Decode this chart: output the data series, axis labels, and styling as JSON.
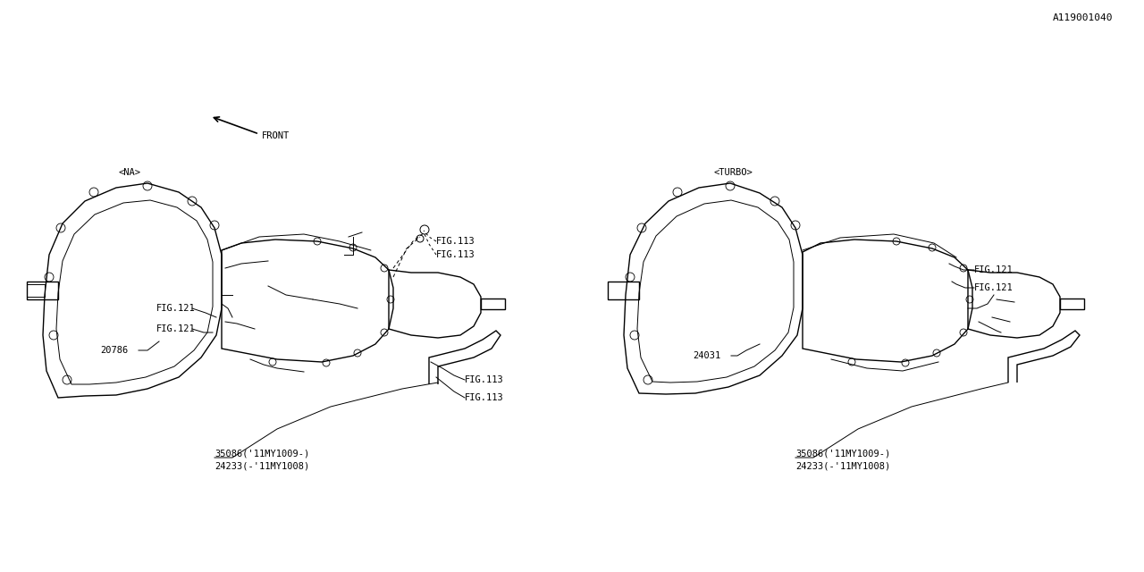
{
  "bg_color": "#ffffff",
  "line_color": "#000000",
  "fig_width": 12.8,
  "fig_height": 6.4,
  "title": "",
  "diagram_id": "A119001040",
  "labels": {
    "na_label": "<NA>",
    "turbo_label": "<TURBO>",
    "front_label": "FRONT",
    "part_20786": "20786",
    "part_24031": "24031",
    "part_24233_1": "24233(-'11MY1008)",
    "part_35086_1": "35086('11MY1009-)",
    "part_24233_2": "24233(-'11MY1008)",
    "part_35086_2": "35086('11MY1009-)",
    "fig121_1": "FIG.121",
    "fig121_2": "FIG.121",
    "fig121_3": "FIG.121",
    "fig121_4": "FIG.121",
    "fig113_1": "FIG.113",
    "fig113_2": "FIG.113",
    "fig113_3": "FIG.113",
    "fig113_4": "FIG.113"
  },
  "font_size_labels": 7.5,
  "font_size_diagram_id": 8,
  "font_family": "monospace"
}
